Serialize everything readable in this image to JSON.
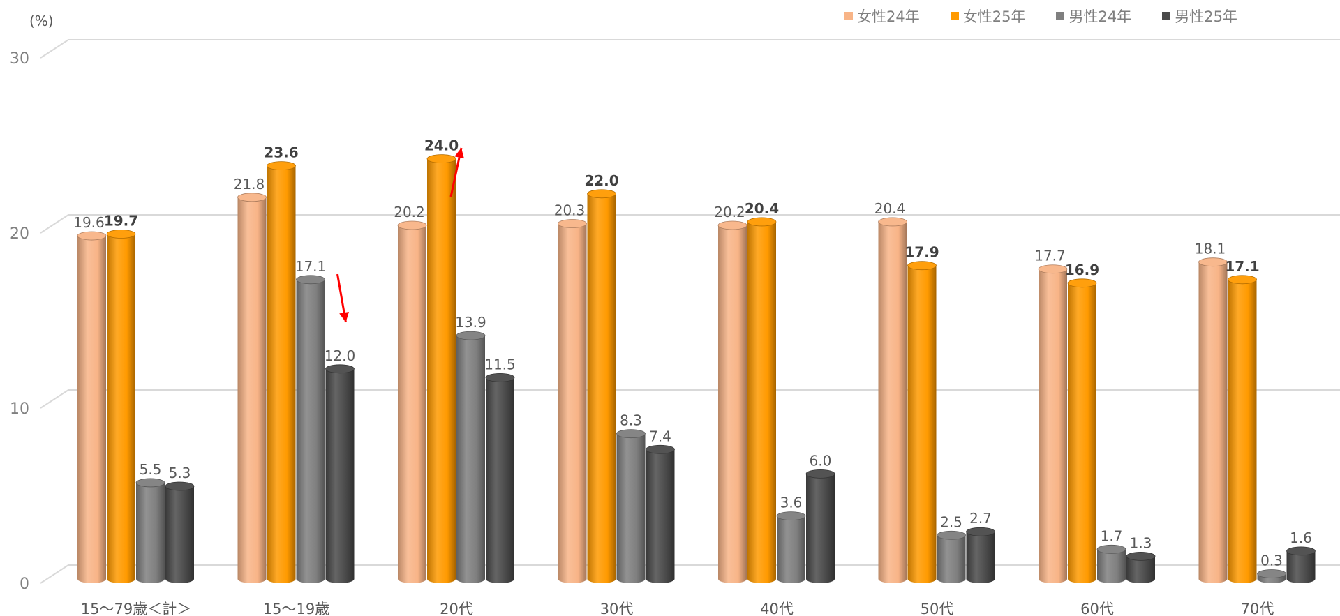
{
  "unit_label": "(%)",
  "chart_data": {
    "type": "bar",
    "ylim": [
      0,
      30
    ],
    "yticks": [
      0,
      10,
      20,
      30
    ],
    "categories": [
      "15～79歳＜計＞",
      "15～19歳",
      "20代",
      "30代",
      "40代",
      "50代",
      "60代",
      "70代"
    ],
    "series": [
      {
        "name": "女性24年",
        "color": "#f8b487",
        "bold": false,
        "values": [
          19.6,
          21.8,
          20.2,
          20.3,
          20.2,
          20.4,
          17.7,
          18.1
        ]
      },
      {
        "name": "女性25年",
        "color": "#ff9a00",
        "bold": true,
        "values": [
          19.7,
          23.6,
          24.0,
          22.0,
          20.4,
          17.9,
          16.9,
          17.1
        ]
      },
      {
        "name": "男性24年",
        "color": "#7f7f7f",
        "bold": false,
        "values": [
          5.5,
          17.1,
          13.9,
          8.3,
          3.6,
          2.5,
          1.7,
          0.3
        ]
      },
      {
        "name": "男性25年",
        "color": "#4a4a4a",
        "bold": false,
        "values": [
          5.3,
          12.0,
          11.5,
          7.4,
          6.0,
          2.7,
          1.3,
          1.6
        ]
      }
    ],
    "legend_position": "top-right",
    "grid": true,
    "annotations": [
      {
        "type": "arrow-up",
        "category": "20代",
        "color": "#ff0000"
      },
      {
        "type": "arrow-down",
        "category": "15～19歳",
        "color": "#ff0000"
      }
    ]
  }
}
